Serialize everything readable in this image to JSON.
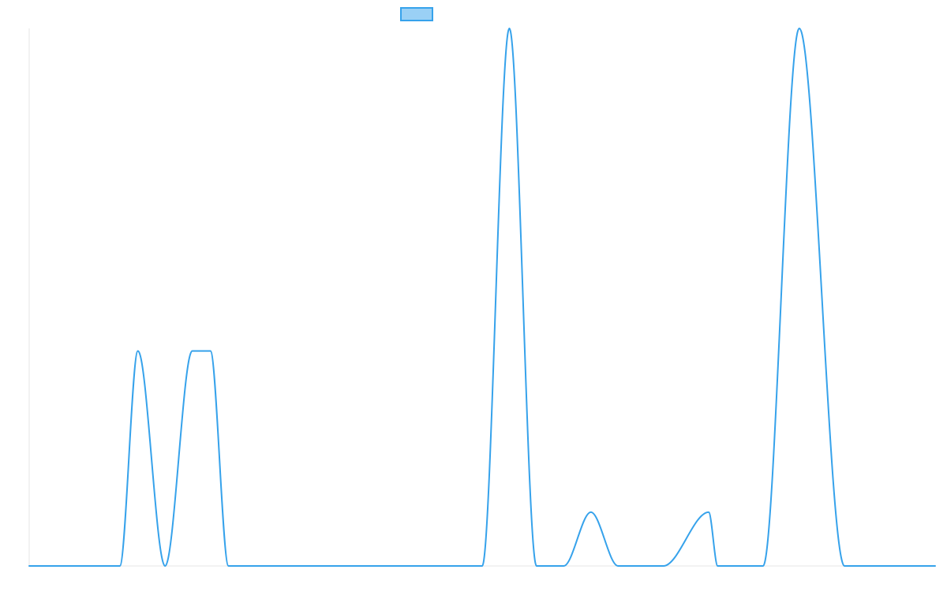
{
  "chart_data": {
    "type": "line",
    "title": "",
    "xlabel": "",
    "ylabel": "",
    "x": [
      0,
      5,
      10,
      12,
      15,
      18,
      20,
      22,
      25,
      30,
      35,
      40,
      45,
      50,
      53,
      56,
      59,
      62,
      65,
      70,
      75,
      76,
      80,
      81,
      85,
      90,
      93,
      95,
      97,
      100
    ],
    "series": [
      {
        "name": "",
        "values": [
          0,
          0,
          0,
          40,
          0,
          40,
          40,
          0,
          0,
          0,
          0,
          0,
          0,
          0,
          100,
          0,
          0,
          10,
          0,
          0,
          10,
          0,
          0,
          0,
          100,
          0,
          0,
          0,
          0,
          0
        ],
        "color": "#36A2EB",
        "fill": "#9AD0F5"
      }
    ],
    "ylim": [
      0,
      100
    ],
    "grid": false,
    "legend_position": "top-center",
    "smooth": true
  }
}
